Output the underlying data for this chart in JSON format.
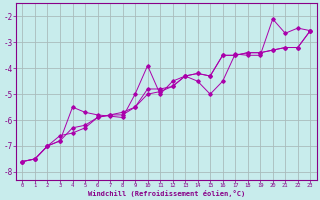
{
  "xlabel": "Windchill (Refroidissement éolien,°C)",
  "bg_color": "#c8ecec",
  "grid_color": "#aabbbb",
  "line_color": "#aa00aa",
  "xlim": [
    -0.5,
    23.5
  ],
  "ylim": [
    -8.3,
    -1.5
  ],
  "xticks": [
    0,
    1,
    2,
    3,
    4,
    5,
    6,
    7,
    8,
    9,
    10,
    11,
    12,
    13,
    14,
    15,
    16,
    17,
    18,
    19,
    20,
    21,
    22,
    23
  ],
  "yticks": [
    -8,
    -7,
    -6,
    -5,
    -4,
    -3,
    -2
  ],
  "series1_x": [
    0,
    1,
    2,
    3,
    4,
    5,
    6,
    7,
    8,
    9,
    10,
    11,
    12,
    13,
    14,
    15,
    16,
    17,
    18,
    19,
    20,
    21,
    22,
    23
  ],
  "series1_y": [
    -7.6,
    -7.5,
    -7.0,
    -6.8,
    -5.5,
    -5.7,
    -5.8,
    -5.85,
    -5.9,
    -5.0,
    -3.9,
    -5.0,
    -4.5,
    -4.3,
    -4.5,
    -5.0,
    -4.5,
    -3.45,
    -3.5,
    -3.5,
    -2.1,
    -2.65,
    -2.45,
    -2.55
  ],
  "series2_x": [
    0,
    1,
    2,
    3,
    4,
    5,
    6,
    7,
    8,
    9,
    10,
    11,
    12,
    13,
    14,
    15,
    16,
    17,
    18,
    19,
    20,
    21,
    22,
    23
  ],
  "series2_y": [
    -7.6,
    -7.5,
    -7.0,
    -6.6,
    -6.5,
    -6.3,
    -5.9,
    -5.8,
    -5.8,
    -5.5,
    -5.0,
    -4.9,
    -4.7,
    -4.3,
    -4.2,
    -4.3,
    -3.5,
    -3.5,
    -3.4,
    -3.4,
    -3.3,
    -3.2,
    -3.2,
    -2.55
  ],
  "series3_x": [
    0,
    1,
    2,
    3,
    4,
    5,
    6,
    7,
    8,
    9,
    10,
    11,
    12,
    13,
    14,
    15,
    16,
    17,
    18,
    19,
    20,
    21,
    22,
    23
  ],
  "series3_y": [
    -7.6,
    -7.5,
    -7.0,
    -6.8,
    -6.3,
    -6.2,
    -5.9,
    -5.8,
    -5.7,
    -5.5,
    -4.8,
    -4.8,
    -4.7,
    -4.3,
    -4.2,
    -4.3,
    -3.5,
    -3.5,
    -3.4,
    -3.4,
    -3.3,
    -3.2,
    -3.2,
    -2.55
  ]
}
